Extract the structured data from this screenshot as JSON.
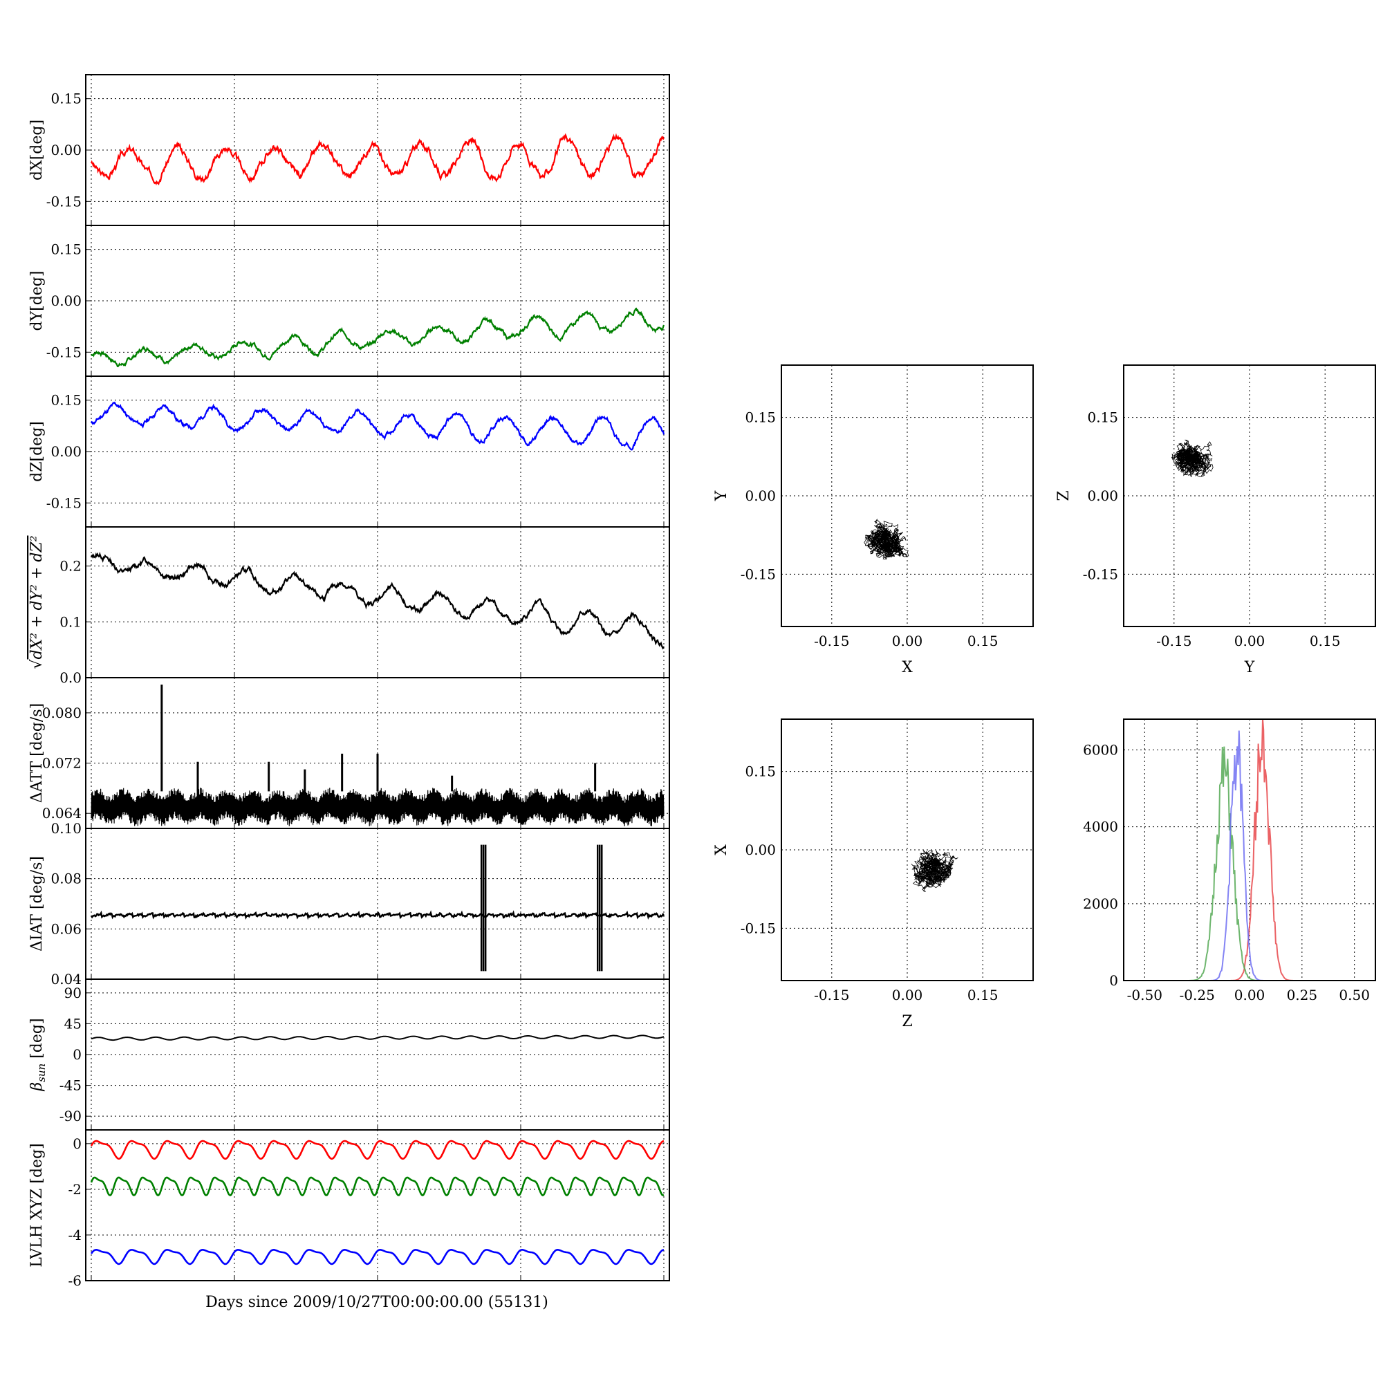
{
  "figure": {
    "xlabel_bottom": "Days since 2009/10/27T00:00:00.00 (55131)"
  },
  "chart_data": [
    {
      "id": "dX",
      "type": "line",
      "ylabel": "dX[deg]",
      "ylim": [
        -0.22,
        0.22
      ],
      "yticks": [
        "0.15",
        "0.00",
        "-0.15"
      ],
      "ytick_values": [
        0.15,
        0.0,
        -0.15
      ],
      "grid": true,
      "series": [
        {
          "color": "#ff0000",
          "base": -0.04,
          "trend": 0.02,
          "amp": 0.035,
          "amp_growth": 1.6,
          "period": 0.085,
          "noise": 0.012,
          "seed": 3,
          "x": [
            0,
            0.1,
            0.2,
            0.3,
            0.4,
            0.5,
            0.6,
            0.7,
            0.8,
            0.9,
            1.0
          ],
          "y": [
            -0.04,
            -0.06,
            -0.05,
            -0.03,
            -0.05,
            -0.03,
            -0.06,
            -0.08,
            -0.07,
            -0.06,
            -0.01
          ]
        }
      ]
    },
    {
      "id": "dY",
      "type": "line",
      "ylabel": "dY[deg]",
      "ylim": [
        -0.22,
        0.22
      ],
      "yticks": [
        "0.15",
        "0.00",
        "-0.15"
      ],
      "ytick_values": [
        0.15,
        0.0,
        -0.15
      ],
      "grid": true,
      "series": [
        {
          "color": "#008000",
          "base": -0.17,
          "trend": 0.12,
          "amp": 0.02,
          "amp_growth": 1.5,
          "period": 0.085,
          "noise": 0.008,
          "seed": 7,
          "x": [
            0,
            0.1,
            0.2,
            0.3,
            0.4,
            0.5,
            0.6,
            0.7,
            0.8,
            0.9,
            1.0
          ],
          "y": [
            -0.17,
            -0.16,
            -0.15,
            -0.13,
            -0.11,
            -0.1,
            -0.09,
            -0.08,
            -0.07,
            -0.06,
            -0.05
          ]
        }
      ]
    },
    {
      "id": "dZ",
      "type": "line",
      "ylabel": "dZ[deg]",
      "ylim": [
        -0.22,
        0.22
      ],
      "yticks": [
        "0.15",
        "0.00",
        "-0.15"
      ],
      "ytick_values": [
        0.15,
        0.0,
        -0.15
      ],
      "grid": true,
      "series": [
        {
          "color": "#0000ff",
          "base": 0.11,
          "trend": -0.06,
          "amp": 0.025,
          "amp_growth": 1.6,
          "period": 0.085,
          "noise": 0.008,
          "seed": 11,
          "x": [
            0,
            0.1,
            0.2,
            0.3,
            0.4,
            0.5,
            0.6,
            0.7,
            0.8,
            0.9,
            1.0
          ],
          "y": [
            0.11,
            0.1,
            0.09,
            0.08,
            0.07,
            0.06,
            0.05,
            0.04,
            0.03,
            0.03,
            0.05
          ]
        }
      ]
    },
    {
      "id": "mag",
      "type": "line",
      "ylabel_math": "sqrt",
      "ylim": [
        0.0,
        0.27
      ],
      "yticks": [
        "0.2",
        "0.1",
        "0.0"
      ],
      "ytick_values": [
        0.2,
        0.1,
        0.0
      ],
      "grid": true,
      "series": [
        {
          "color": "#000000",
          "base": 0.21,
          "trend": -0.13,
          "amp": 0.012,
          "amp_growth": 1.8,
          "period": 0.085,
          "noise": 0.006,
          "seed": 13,
          "x": [
            0,
            0.1,
            0.2,
            0.3,
            0.4,
            0.5,
            0.6,
            0.7,
            0.8,
            0.9,
            1.0
          ],
          "y": [
            0.21,
            0.2,
            0.18,
            0.16,
            0.14,
            0.13,
            0.13,
            0.12,
            0.1,
            0.09,
            0.08
          ]
        }
      ]
    },
    {
      "id": "datt",
      "type": "line",
      "ylabel": "ΔATT [deg/s]",
      "ylim": [
        0.0616,
        0.0856
      ],
      "yticks": [
        "0.080",
        "0.072",
        "0.064"
      ],
      "ytick_values": [
        0.08,
        0.072,
        0.064
      ],
      "grid": true,
      "series": [
        {
          "color": "#000000",
          "band": [
            0.0625,
            0.0675
          ],
          "spike_x": [
            0.123,
            0.186,
            0.31,
            0.373,
            0.438,
            0.5,
            0.63,
            0.88
          ],
          "spike_y": [
            0.0845,
            0.0722,
            0.0722,
            0.071,
            0.0735,
            0.0735,
            0.07,
            0.072
          ]
        }
      ]
    },
    {
      "id": "diat",
      "type": "line",
      "ylabel": "ΔIAT [deg/s]",
      "ylim": [
        0.04,
        0.1
      ],
      "yticks": [
        "0.10",
        "0.08",
        "0.06",
        "0.04"
      ],
      "ytick_values": [
        0.1,
        0.08,
        0.06,
        0.04
      ],
      "grid": true,
      "series": [
        {
          "color": "#000000",
          "level": 0.0655,
          "spike_x": [
            0.685,
            0.888
          ],
          "spike_range": [
            0.0432,
            0.0935
          ]
        }
      ]
    },
    {
      "id": "beta",
      "type": "line",
      "ylabel": "βsun [deg]",
      "ylim": [
        -110,
        110
      ],
      "yticks": [
        "90",
        "45",
        "0",
        "-45",
        "-90"
      ],
      "ytick_values": [
        90,
        45,
        0,
        -45,
        -90
      ],
      "grid": true,
      "series": [
        {
          "color": "#000000",
          "base": 23,
          "trend": 3,
          "amp": 2,
          "period": 0.05
        }
      ]
    },
    {
      "id": "lvlh",
      "type": "line",
      "ylabel": "LVLH XYZ [deg]",
      "ylim": [
        -6,
        0.6
      ],
      "yticks": [
        "0",
        "-2",
        "-4",
        "-6"
      ],
      "ytick_values": [
        0,
        -2,
        -4,
        -6
      ],
      "grid": true,
      "series": [
        {
          "color": "#ff0000",
          "base": -0.2,
          "amp": 0.35,
          "period": 0.062
        },
        {
          "color": "#008000",
          "base": -1.8,
          "amp": 0.35,
          "period": 0.042
        },
        {
          "color": "#0000ff",
          "base": -4.9,
          "amp": 0.28,
          "period": 0.062
        }
      ]
    },
    {
      "id": "xy",
      "type": "scatter",
      "xlabel": "X",
      "ylabel": "Y",
      "xlim": [
        -0.25,
        0.25
      ],
      "ylim": [
        -0.25,
        0.25
      ],
      "xticks": [
        "-0.15",
        "0.00",
        "0.15"
      ],
      "yticks": [
        "0.15",
        "0.00",
        "-0.15"
      ],
      "grid": true,
      "center": [
        -0.04,
        -0.1
      ],
      "spread": [
        0.035,
        0.04
      ],
      "seed": 21
    },
    {
      "id": "yz",
      "type": "scatter",
      "xlabel": "Y",
      "ylabel": "Z",
      "xlim": [
        -0.25,
        0.25
      ],
      "ylim": [
        -0.25,
        0.25
      ],
      "xticks": [
        "-0.15",
        "0.00",
        "0.15"
      ],
      "yticks": [
        "0.15",
        "0.00",
        "-0.15"
      ],
      "grid": true,
      "center": [
        -0.12,
        0.07
      ],
      "spread": [
        0.035,
        0.03
      ],
      "seed": 22
    },
    {
      "id": "zx",
      "type": "scatter",
      "xlabel": "Z",
      "ylabel": "X",
      "xlim": [
        -0.25,
        0.25
      ],
      "ylim": [
        -0.25,
        0.25
      ],
      "xticks": [
        "-0.15",
        "0.00",
        "0.15"
      ],
      "yticks": [
        "0.15",
        "0.00",
        "-0.15"
      ],
      "grid": true,
      "center": [
        0.05,
        -0.04
      ],
      "spread": [
        0.04,
        0.035
      ],
      "seed": 23
    },
    {
      "id": "hist",
      "type": "line",
      "xlim": [
        -0.6,
        0.6
      ],
      "ylim": [
        0,
        6800
      ],
      "xticks": [
        "-0.50",
        "-0.25",
        "0.00",
        "0.25",
        "0.50"
      ],
      "xtick_values": [
        -0.5,
        -0.25,
        0.0,
        0.25,
        0.5
      ],
      "yticks": [
        "6000",
        "4000",
        "2000",
        "0"
      ],
      "ytick_values": [
        6000,
        4000,
        2000,
        0
      ],
      "grid": true,
      "series": [
        {
          "color": "#e8474a",
          "mean": 0.06,
          "sd": 0.035,
          "peak": 6600
        },
        {
          "color": "#55a955",
          "mean": -0.12,
          "sd": 0.04,
          "peak": 5700
        },
        {
          "color": "#6e6ef2",
          "mean": -0.06,
          "sd": 0.03,
          "peak": 6300
        }
      ]
    }
  ]
}
